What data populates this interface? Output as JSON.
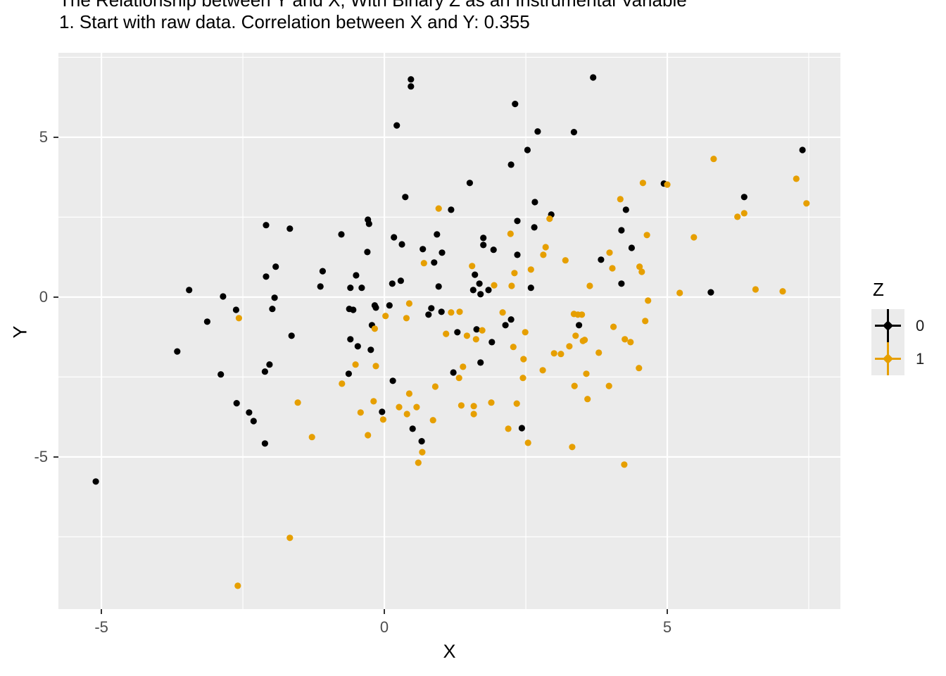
{
  "title": "The Relationship between Y and X, With Binary Z as an Instrumental Variable",
  "subtitle": "1. Start with raw data. Correlation between X and Y: 0.355",
  "axes": {
    "x_label": "X",
    "y_label": "Y",
    "x_tick_labels": [
      "-5",
      "0",
      "5"
    ],
    "y_tick_labels": [
      "5",
      "0",
      "-5"
    ]
  },
  "legend": {
    "title": "Z",
    "entries": [
      {
        "label": "0",
        "color": "#000000"
      },
      {
        "label": "1",
        "color": "#E69F00"
      }
    ]
  },
  "colors": {
    "panel_background": "#EBEBEB",
    "gridline": "#FFFFFF",
    "axis_text": "#4D4D4D",
    "tick_mark": "#333333",
    "series_0": "#000000",
    "series_1": "#E69F00"
  },
  "chart_data": {
    "type": "scatter",
    "title": "The Relationship between Y and X, With Binary Z as an Instrumental Variable",
    "subtitle": "1. Start with raw data. Correlation between X and Y: 0.355",
    "xlabel": "X",
    "ylabel": "Y",
    "legend_title": "Z",
    "legend_position": "right",
    "grid": true,
    "xlim": [
      -5.76,
      8.06
    ],
    "ylim": [
      -9.76,
      7.64
    ],
    "x_major_ticks": [
      -5,
      0,
      5
    ],
    "x_minor_ticks": [
      -2.5,
      2.5,
      7.5
    ],
    "y_major_ticks": [
      5,
      0,
      -5
    ],
    "y_minor_ticks": [
      7.5,
      2.5,
      -2.5,
      -7.5
    ],
    "correlation_x_y": 0.355,
    "point_radius": 4.6,
    "series": [
      {
        "name": "0",
        "color": "#000000",
        "points": [
          [
            -5.1,
            -5.77
          ],
          [
            -2.09,
            2.25
          ],
          [
            -1.67,
            2.14
          ],
          [
            0.47,
            6.81
          ],
          [
            0.47,
            6.59
          ],
          [
            2.31,
            6.04
          ],
          [
            0.22,
            5.37
          ],
          [
            2.71,
            5.18
          ],
          [
            3.35,
            5.16
          ],
          [
            2.53,
            4.6
          ],
          [
            2.24,
            4.14
          ],
          [
            1.51,
            3.57
          ],
          [
            0.37,
            3.13
          ],
          [
            1.18,
            2.73
          ],
          [
            2.66,
            2.97
          ],
          [
            2.95,
            2.58
          ],
          [
            2.35,
            2.38
          ],
          [
            -0.29,
            2.42
          ],
          [
            -0.27,
            2.29
          ],
          [
            -0.76,
            1.96
          ],
          [
            0.17,
            1.87
          ],
          [
            0.93,
            1.96
          ],
          [
            1.75,
            1.85
          ],
          [
            2.65,
            2.18
          ],
          [
            3.69,
            6.87
          ],
          [
            7.39,
            4.6
          ],
          [
            4.94,
            3.55
          ],
          [
            4.27,
            2.73
          ],
          [
            6.36,
            3.13
          ],
          [
            4.19,
            2.09
          ],
          [
            -3.45,
            0.22
          ],
          [
            -2.85,
            0.02
          ],
          [
            -1.92,
            0.95
          ],
          [
            -2.09,
            0.64
          ],
          [
            -1.09,
            0.81
          ],
          [
            -1.13,
            0.33
          ],
          [
            -1.94,
            -0.02
          ],
          [
            -2.62,
            -0.4
          ],
          [
            -3.13,
            -0.77
          ],
          [
            -1.98,
            -0.37
          ],
          [
            -1.64,
            -1.21
          ],
          [
            -3.66,
            -1.7
          ],
          [
            -2.03,
            -2.11
          ],
          [
            -2.11,
            -2.33
          ],
          [
            -2.89,
            -2.42
          ],
          [
            -2.61,
            -3.32
          ],
          [
            -2.39,
            -3.61
          ],
          [
            -2.31,
            -3.88
          ],
          [
            1.75,
            1.63
          ],
          [
            1.93,
            1.48
          ],
          [
            0.31,
            1.65
          ],
          [
            0.68,
            1.5
          ],
          [
            1.02,
            1.39
          ],
          [
            -0.3,
            1.41
          ],
          [
            2.35,
            1.32
          ],
          [
            0.88,
            1.08
          ],
          [
            -0.5,
            0.68
          ],
          [
            -0.6,
            0.29
          ],
          [
            -0.4,
            0.29
          ],
          [
            1.6,
            0.7
          ],
          [
            1.68,
            0.42
          ],
          [
            1.57,
            0.22
          ],
          [
            1.7,
            0.09
          ],
          [
            1.84,
            0.22
          ],
          [
            0.14,
            0.42
          ],
          [
            0.96,
            0.33
          ],
          [
            0.29,
            0.51
          ],
          [
            2.59,
            0.29
          ],
          [
            -0.62,
            -0.37
          ],
          [
            -0.55,
            -0.4
          ],
          [
            -0.17,
            -0.26
          ],
          [
            -0.15,
            -0.33
          ],
          [
            0.09,
            -0.26
          ],
          [
            0.83,
            -0.35
          ],
          [
            0.78,
            -0.55
          ],
          [
            1.01,
            -0.46
          ],
          [
            -0.22,
            -0.88
          ],
          [
            -0.6,
            -1.32
          ],
          [
            -0.47,
            -1.54
          ],
          [
            -0.24,
            -1.65
          ],
          [
            1.29,
            -1.1
          ],
          [
            1.63,
            -1.01
          ],
          [
            1.9,
            -1.41
          ],
          [
            2.14,
            -0.88
          ],
          [
            2.24,
            -0.7
          ],
          [
            3.44,
            -0.88
          ],
          [
            -0.63,
            -2.4
          ],
          [
            1.22,
            -2.36
          ],
          [
            1.7,
            -2.05
          ],
          [
            0.15,
            -2.62
          ],
          [
            -0.04,
            -3.59
          ],
          [
            4.37,
            1.54
          ],
          [
            3.83,
            1.17
          ],
          [
            4.19,
            0.42
          ],
          [
            5.77,
            0.15
          ],
          [
            -2.11,
            -4.58
          ],
          [
            0.5,
            -4.12
          ],
          [
            0.66,
            -4.51
          ],
          [
            2.43,
            -4.1
          ]
        ]
      },
      {
        "name": "1",
        "color": "#E69F00",
        "points": [
          [
            0.96,
            2.77
          ],
          [
            2.92,
            2.45
          ],
          [
            2.23,
            1.98
          ],
          [
            5.82,
            4.32
          ],
          [
            4.57,
            3.57
          ],
          [
            5.0,
            3.52
          ],
          [
            7.28,
            3.7
          ],
          [
            4.17,
            3.06
          ],
          [
            7.46,
            2.93
          ],
          [
            6.24,
            2.51
          ],
          [
            6.36,
            2.62
          ],
          [
            4.64,
            1.94
          ],
          [
            5.47,
            1.87
          ],
          [
            -2.57,
            -0.66
          ],
          [
            -1.53,
            -3.3
          ],
          [
            2.85,
            1.56
          ],
          [
            2.81,
            1.32
          ],
          [
            3.2,
            1.15
          ],
          [
            0.7,
            1.06
          ],
          [
            1.55,
            0.97
          ],
          [
            2.59,
            0.86
          ],
          [
            1.94,
            0.37
          ],
          [
            2.25,
            0.35
          ],
          [
            2.3,
            0.75
          ],
          [
            0.44,
            -0.2
          ],
          [
            0.02,
            -0.59
          ],
          [
            0.39,
            -0.66
          ],
          [
            1.18,
            -0.48
          ],
          [
            1.33,
            -0.46
          ],
          [
            -0.17,
            -0.99
          ],
          [
            1.09,
            -1.15
          ],
          [
            1.46,
            -1.21
          ],
          [
            1.73,
            -1.04
          ],
          [
            1.62,
            -1.32
          ],
          [
            2.09,
            -0.48
          ],
          [
            2.28,
            -1.56
          ],
          [
            2.49,
            -1.1
          ],
          [
            2.46,
            -1.94
          ],
          [
            3.0,
            -1.76
          ],
          [
            3.12,
            -1.78
          ],
          [
            3.27,
            -1.54
          ],
          [
            2.8,
            -2.29
          ],
          [
            -0.51,
            -2.11
          ],
          [
            -0.15,
            -2.16
          ],
          [
            1.39,
            -2.18
          ],
          [
            3.35,
            -0.53
          ],
          [
            3.42,
            -0.55
          ],
          [
            3.49,
            -0.55
          ],
          [
            3.38,
            -1.21
          ],
          [
            3.51,
            -1.37
          ],
          [
            -0.75,
            -2.71
          ],
          [
            -0.19,
            -3.26
          ],
          [
            -0.42,
            -3.61
          ],
          [
            -0.02,
            -3.83
          ],
          [
            0.26,
            -3.44
          ],
          [
            0.44,
            -3.02
          ],
          [
            0.4,
            -3.66
          ],
          [
            0.57,
            -3.44
          ],
          [
            0.9,
            -2.8
          ],
          [
            0.86,
            -3.85
          ],
          [
            1.36,
            -3.39
          ],
          [
            1.32,
            -2.53
          ],
          [
            1.58,
            -3.41
          ],
          [
            1.58,
            -3.66
          ],
          [
            1.89,
            -3.3
          ],
          [
            2.34,
            -3.33
          ],
          [
            2.45,
            -2.53
          ],
          [
            3.36,
            -2.78
          ],
          [
            3.98,
            1.39
          ],
          [
            4.03,
            0.9
          ],
          [
            4.51,
            0.95
          ],
          [
            4.55,
            0.79
          ],
          [
            3.63,
            0.35
          ],
          [
            5.22,
            0.13
          ],
          [
            6.56,
            0.24
          ],
          [
            7.04,
            0.18
          ],
          [
            4.66,
            -0.11
          ],
          [
            4.61,
            -0.75
          ],
          [
            4.05,
            -0.93
          ],
          [
            3.54,
            -1.34
          ],
          [
            3.79,
            -1.74
          ],
          [
            4.25,
            -1.32
          ],
          [
            4.35,
            -1.41
          ],
          [
            4.5,
            -2.22
          ],
          [
            3.57,
            -2.4
          ],
          [
            3.97,
            -2.78
          ],
          [
            3.59,
            -3.19
          ],
          [
            -1.28,
            -4.38
          ],
          [
            -1.67,
            -7.53
          ],
          [
            -2.59,
            -9.03
          ],
          [
            -0.29,
            -4.32
          ],
          [
            0.67,
            -4.85
          ],
          [
            0.6,
            -5.18
          ],
          [
            2.19,
            -4.12
          ],
          [
            2.54,
            -4.56
          ],
          [
            3.32,
            -4.69
          ],
          [
            4.24,
            -5.24
          ]
        ]
      }
    ]
  }
}
